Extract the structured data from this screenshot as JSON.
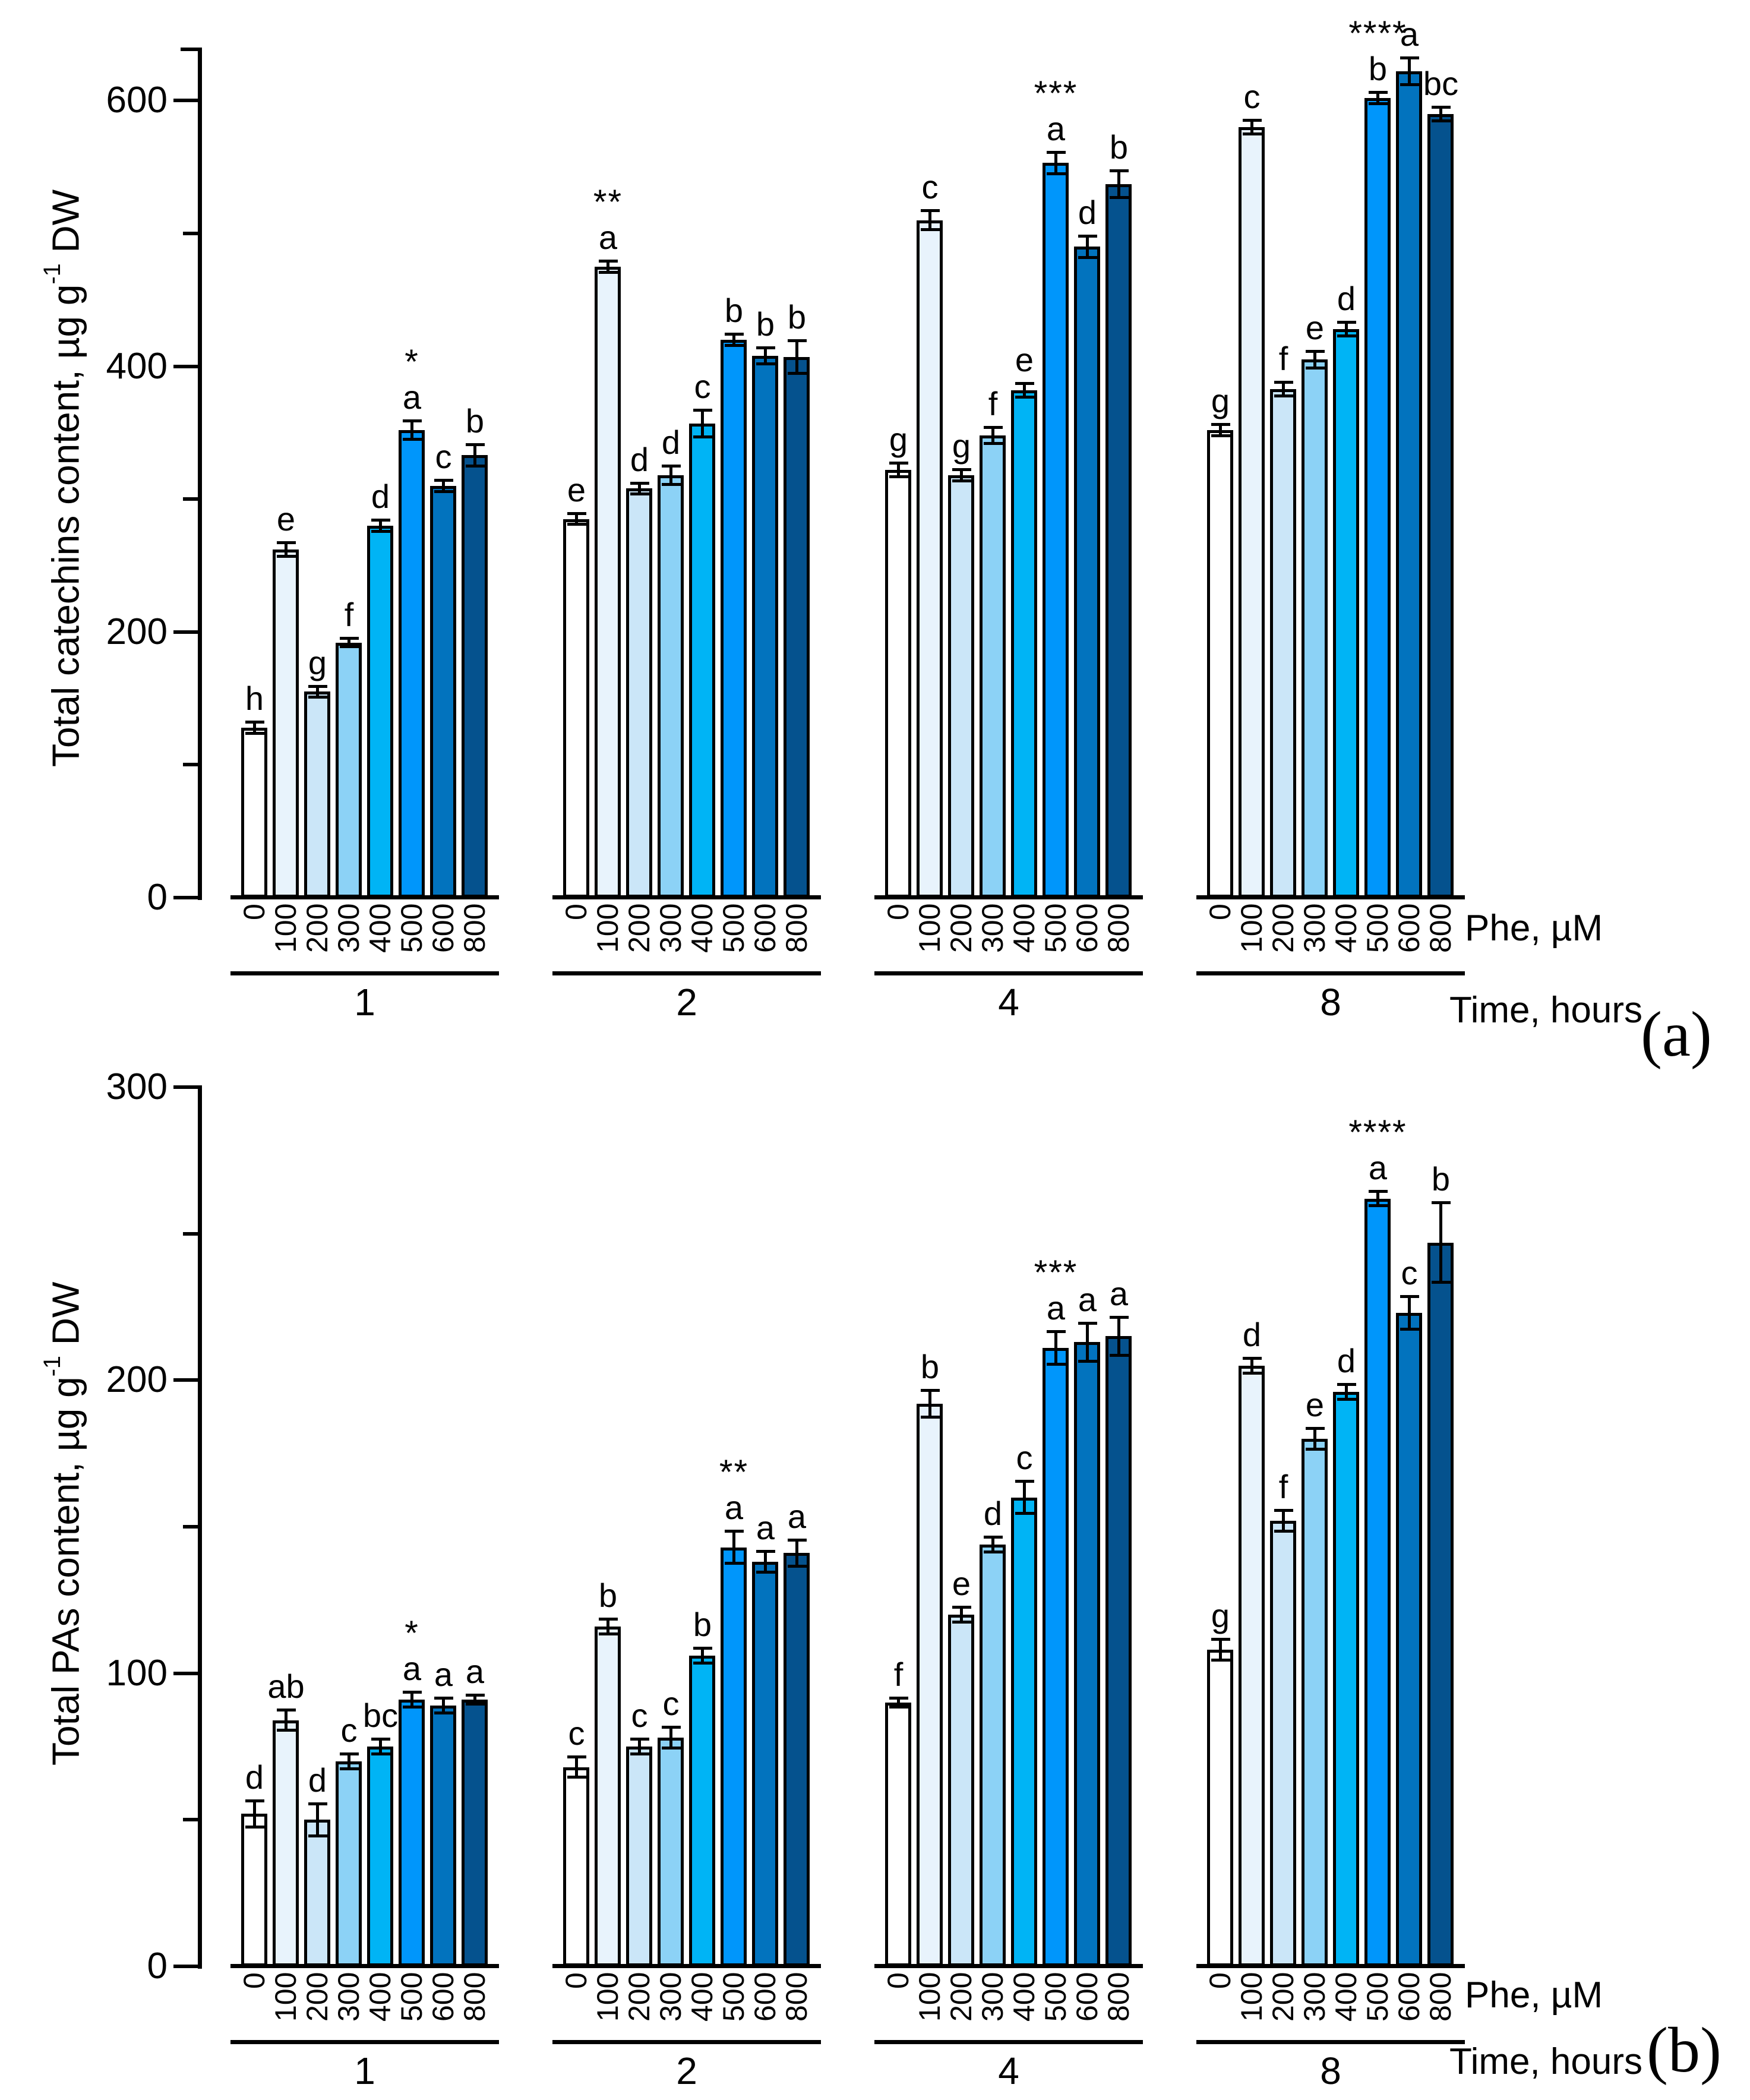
{
  "figure": {
    "panel_count": 2,
    "x_axis_unit_label": "Phe, µM",
    "x_axis_group_label": "Time, hours"
  },
  "chart_data": [
    {
      "type": "bar",
      "panel_letter": "(a)",
      "ylabel": "Total catechins content, µg g⁻¹ DW",
      "ylabel_parts": {
        "main": "Total catechins content, µg g",
        "sup": "-1",
        "tail": " DW"
      },
      "xlabel_phe": "Phe, µM",
      "xlabel_time": "Time, hours",
      "ylim": [
        0,
        640
      ],
      "yticks": [
        0,
        200,
        400,
        600
      ],
      "yminor": [
        100,
        300,
        500
      ],
      "grid": false,
      "legend": "none",
      "phe_categories": [
        "0",
        "100",
        "200",
        "300",
        "400",
        "500",
        "600",
        "800"
      ],
      "time_groups": [
        "1",
        "2",
        "4",
        "8"
      ],
      "bar_colors": [
        "#FFFFFF",
        "#E8F3FC",
        "#CBE6F8",
        "#8CD2F6",
        "#00B4F5",
        "#0096FB",
        "#0273BE",
        "#05528E"
      ],
      "groups": [
        {
          "time": "1",
          "values": [
            128,
            262,
            155,
            192,
            280,
            352,
            310,
            333
          ],
          "errors": [
            3,
            4,
            3,
            2,
            3,
            6,
            3,
            7
          ],
          "letters": [
            "h",
            "e",
            "g",
            "f",
            "d",
            "a",
            "c",
            "b"
          ],
          "stars": {
            "index": 5,
            "text": "*"
          }
        },
        {
          "time": "2",
          "values": [
            285,
            475,
            308,
            318,
            357,
            420,
            408,
            407
          ],
          "errors": [
            3,
            3,
            3,
            6,
            9,
            3,
            5,
            11
          ],
          "letters": [
            "e",
            "a",
            "d",
            "d",
            "c",
            "b",
            "b",
            "b"
          ],
          "stars": {
            "index": 1,
            "text": "**"
          }
        },
        {
          "time": "4",
          "values": [
            322,
            510,
            318,
            348,
            382,
            553,
            490,
            537
          ],
          "errors": [
            4,
            6,
            3,
            5,
            4,
            7,
            7,
            9
          ],
          "letters": [
            "g",
            "c",
            "g",
            "f",
            "e",
            "a",
            "d",
            "b"
          ],
          "stars": {
            "index": 5,
            "text": "***"
          }
        },
        {
          "time": "8",
          "values": [
            352,
            580,
            383,
            405,
            428,
            602,
            622,
            590
          ],
          "errors": [
            3,
            4,
            4,
            5,
            4,
            3,
            9,
            4
          ],
          "letters": [
            "g",
            "c",
            "f",
            "e",
            "d",
            "b",
            "a",
            "bc"
          ],
          "stars": {
            "index": 5,
            "text": "****"
          }
        }
      ]
    },
    {
      "type": "bar",
      "panel_letter": "(b)",
      "ylabel": "Total PAs content, µg g⁻¹ DW",
      "ylabel_parts": {
        "main": "Total PAs content, µg g",
        "sup": "-1",
        "tail": " DW"
      },
      "xlabel_phe": "Phe, µM",
      "xlabel_time": "Time, hours",
      "ylim": [
        0,
        300
      ],
      "yticks": [
        0,
        100,
        200,
        300
      ],
      "yminor": [
        50,
        150,
        250
      ],
      "grid": false,
      "legend": "none",
      "phe_categories": [
        "0",
        "100",
        "200",
        "300",
        "400",
        "500",
        "600",
        "800"
      ],
      "time_groups": [
        "1",
        "2",
        "4",
        "8"
      ],
      "bar_colors": [
        "#FFFFFF",
        "#E8F3FC",
        "#CBE6F8",
        "#8CD2F6",
        "#00B4F5",
        "#0096FB",
        "#0273BE",
        "#05528E"
      ],
      "groups": [
        {
          "time": "1",
          "values": [
            52,
            84,
            50,
            70,
            75,
            91,
            89,
            91
          ],
          "errors": [
            4,
            3,
            5,
            2,
            2,
            2,
            2,
            1
          ],
          "letters": [
            "d",
            "ab",
            "d",
            "c",
            "bc",
            "a",
            "a",
            "a"
          ],
          "stars": {
            "index": 5,
            "text": "*"
          }
        },
        {
          "time": "2",
          "values": [
            68,
            116,
            75,
            78,
            106,
            143,
            138,
            141
          ],
          "errors": [
            3,
            2,
            2,
            3,
            2,
            5,
            3,
            4
          ],
          "letters": [
            "c",
            "b",
            "c",
            "c",
            "b",
            "a",
            "a",
            "a"
          ],
          "stars": {
            "index": 5,
            "text": "**"
          }
        },
        {
          "time": "4",
          "values": [
            90,
            192,
            120,
            144,
            160,
            211,
            213,
            215
          ],
          "errors": [
            1,
            4,
            2,
            2,
            5,
            5,
            6,
            6
          ],
          "letters": [
            "f",
            "b",
            "e",
            "d",
            "c",
            "a",
            "a",
            "a"
          ],
          "stars": {
            "index": 5,
            "text": "***"
          }
        },
        {
          "time": "8",
          "values": [
            108,
            205,
            152,
            180,
            196,
            262,
            223,
            247
          ],
          "errors": [
            3,
            2,
            3,
            3,
            2,
            2,
            5,
            13
          ],
          "letters": [
            "g",
            "d",
            "f",
            "e",
            "d",
            "a",
            "c",
            "b"
          ],
          "stars": {
            "index": 5,
            "text": "****"
          }
        }
      ]
    }
  ]
}
